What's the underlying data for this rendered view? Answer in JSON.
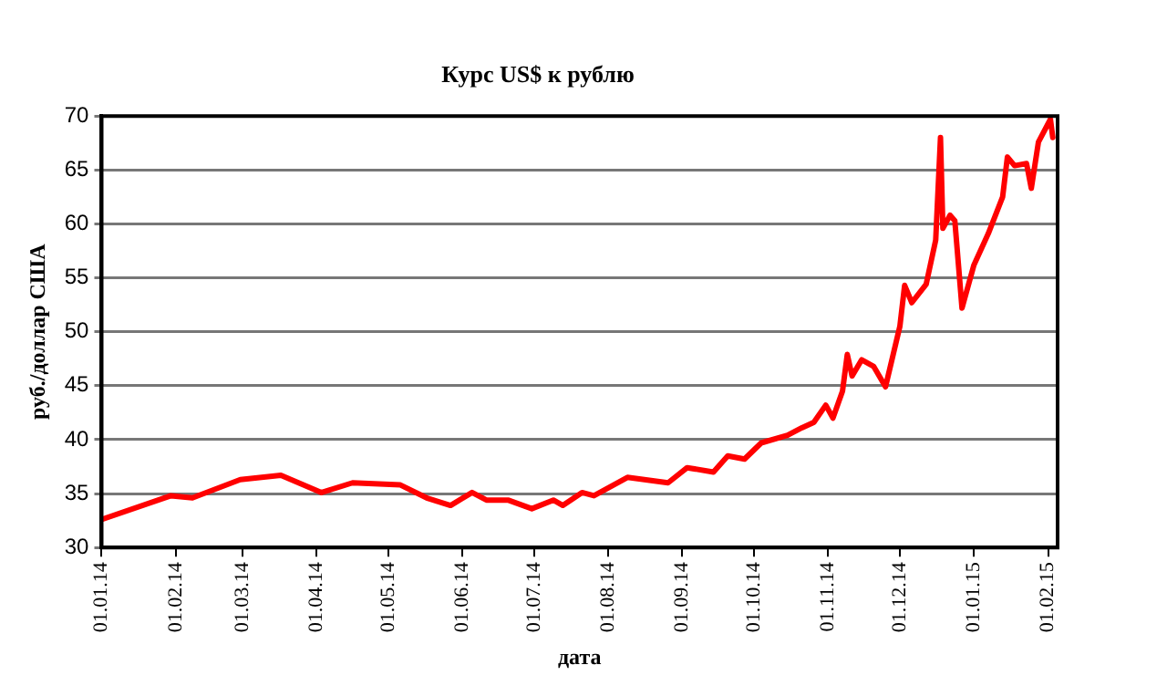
{
  "chart_data": {
    "type": "line",
    "title": "Курс US$ к рублю",
    "xlabel": "дата",
    "ylabel": "руб./доллар США",
    "x": [
      "2014-01-01",
      "2014-01-30",
      "2014-02-08",
      "2014-02-28",
      "2014-03-17",
      "2014-04-03",
      "2014-04-16",
      "2014-05-06",
      "2014-05-17",
      "2014-05-27",
      "2014-06-05",
      "2014-06-11",
      "2014-06-20",
      "2014-06-30",
      "2014-07-09",
      "2014-07-13",
      "2014-07-21",
      "2014-07-26",
      "2014-08-09",
      "2014-08-26",
      "2014-09-03",
      "2014-09-14",
      "2014-09-20",
      "2014-09-27",
      "2014-10-04",
      "2014-10-15",
      "2014-10-21",
      "2014-10-26",
      "2014-10-31",
      "2014-11-03",
      "2014-11-07",
      "2014-11-09",
      "2014-11-11",
      "2014-11-15",
      "2014-11-20",
      "2014-11-25",
      "2014-12-01",
      "2014-12-03",
      "2014-12-06",
      "2014-12-12",
      "2014-12-16",
      "2014-12-18",
      "2014-12-19",
      "2014-12-22",
      "2014-12-24",
      "2014-12-27",
      "2015-01-01",
      "2015-01-07",
      "2015-01-13",
      "2015-01-15",
      "2015-01-18",
      "2015-01-23",
      "2015-01-25",
      "2015-01-28",
      "2015-02-02",
      "2015-02-03"
    ],
    "series": [
      {
        "color": "#ff0000",
        "values": [
          32.6,
          34.8,
          34.6,
          36.3,
          36.7,
          35.1,
          36.0,
          35.8,
          34.6,
          33.9,
          35.1,
          34.4,
          34.4,
          33.6,
          34.4,
          33.9,
          35.1,
          34.8,
          36.5,
          36.0,
          37.4,
          37.0,
          38.5,
          38.2,
          39.7,
          40.4,
          41.1,
          41.6,
          43.2,
          42.0,
          44.5,
          47.9,
          45.9,
          47.4,
          46.8,
          44.9,
          50.5,
          54.3,
          52.7,
          54.4,
          58.5,
          68.0,
          59.6,
          60.8,
          60.3,
          52.2,
          56.2,
          59.1,
          62.5,
          66.2,
          65.4,
          65.6,
          63.3,
          67.6,
          69.7,
          68.0
        ]
      }
    ],
    "xlim": [
      "2014-01-01",
      "2015-02-05"
    ],
    "xticks": [
      {
        "value": "2014-01-01",
        "label": "01.01.14"
      },
      {
        "value": "2014-02-01",
        "label": "01.02.14"
      },
      {
        "value": "2014-03-01",
        "label": "01.03.14"
      },
      {
        "value": "2014-04-01",
        "label": "01.04.14"
      },
      {
        "value": "2014-05-01",
        "label": "01.05.14"
      },
      {
        "value": "2014-06-01",
        "label": "01.06.14"
      },
      {
        "value": "2014-07-01",
        "label": "01.07.14"
      },
      {
        "value": "2014-08-01",
        "label": "01.08.14"
      },
      {
        "value": "2014-09-01",
        "label": "01.09.14"
      },
      {
        "value": "2014-10-01",
        "label": "01.10.14"
      },
      {
        "value": "2014-11-01",
        "label": "01.11.14"
      },
      {
        "value": "2014-12-01",
        "label": "01.12.14"
      },
      {
        "value": "2015-01-01",
        "label": "01.01.15"
      },
      {
        "value": "2015-02-01",
        "label": "01.02.15"
      }
    ],
    "ylim": [
      30,
      70
    ],
    "yticks": [
      30,
      35,
      40,
      45,
      50,
      55,
      60,
      65,
      70
    ],
    "grid": "y",
    "legend": false,
    "marker": "none",
    "line_style": "solid"
  }
}
